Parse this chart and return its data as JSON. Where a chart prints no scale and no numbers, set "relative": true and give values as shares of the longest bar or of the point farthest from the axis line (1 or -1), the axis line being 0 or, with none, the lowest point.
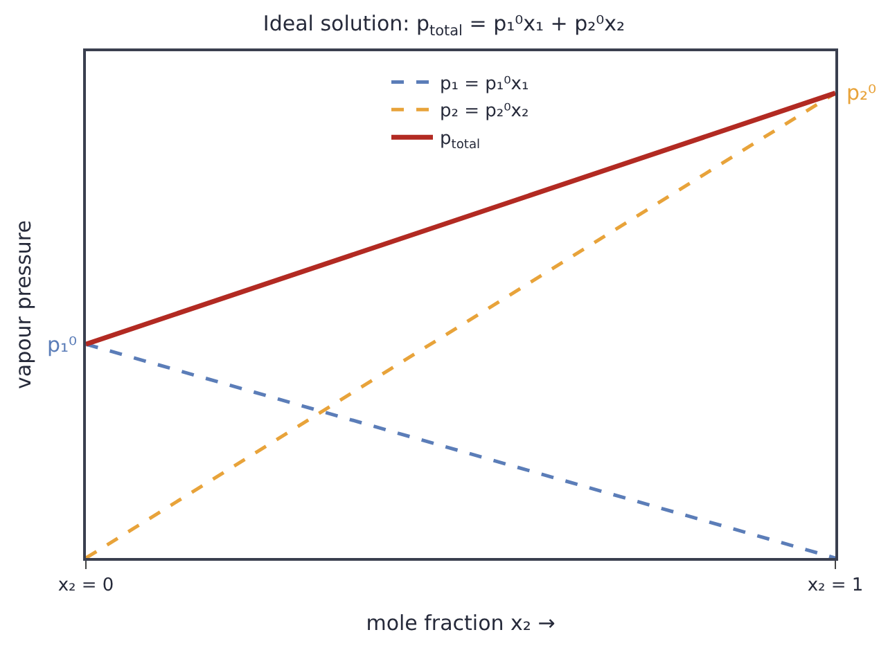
{
  "chart_data": {
    "type": "line",
    "title": "Ideal solution: p$_{total}$ = p₁⁰x₁ + p₂⁰x₂",
    "xlabel": "mole fraction x₂ →",
    "ylabel": "vapour pressure",
    "x": [
      0,
      1
    ],
    "xlim": [
      0,
      1
    ],
    "xticks": [
      {
        "value": 0,
        "label": "x₂ = 0"
      },
      {
        "value": 1,
        "label": "x₂ = 1"
      }
    ],
    "relative": true,
    "legend": "top",
    "marker": "none",
    "series": [
      {
        "name": "p₁ = p₁⁰x₁",
        "color": "#5b7db8",
        "values": [
          0.46,
          0
        ],
        "line_style": "dashed"
      },
      {
        "name": "p₂ = p₂⁰x₂",
        "color": "#e8a33a",
        "values": [
          0,
          1
        ],
        "line_style": "dashed"
      },
      {
        "name": "p$_{total}$",
        "color": "#b22a22",
        "values": [
          0.46,
          1
        ],
        "line_style": "solid"
      }
    ],
    "annotations": [
      {
        "text": "p₁⁰",
        "x": 0,
        "y": 0.46
      },
      {
        "text": "p₂⁰",
        "x": 1,
        "y": 1
      }
    ]
  }
}
